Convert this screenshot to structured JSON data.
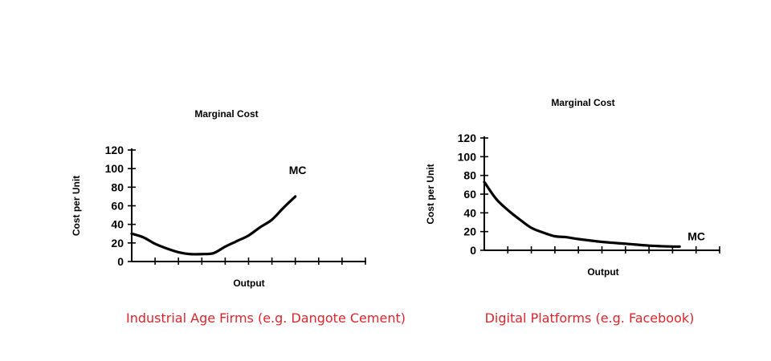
{
  "caption_color": "#d9262c",
  "chart_data": [
    {
      "type": "line",
      "title": "Marginal Cost",
      "xlabel": "Output",
      "ylabel": "Cost per Unit",
      "ylim": [
        0,
        120
      ],
      "yticks": [
        0,
        20,
        40,
        60,
        80,
        100,
        120
      ],
      "x_tick_count": 10,
      "xlim": [
        0,
        10
      ],
      "series": [
        {
          "name": "MC",
          "x": [
            0,
            0.5,
            1,
            1.5,
            2,
            2.5,
            3,
            3.5,
            4,
            4.5,
            5,
            5.5,
            6,
            6.5,
            7
          ],
          "values": [
            30,
            26,
            19,
            14,
            10,
            8,
            8,
            9,
            16,
            22,
            28,
            37,
            45,
            58,
            70
          ]
        }
      ],
      "caption": "Industrial Age Firms (e.g. Dangote Cement)"
    },
    {
      "type": "line",
      "title": "Marginal Cost",
      "xlabel": "Output",
      "ylabel": "Cost per Unit",
      "ylim": [
        0,
        120
      ],
      "yticks": [
        0,
        20,
        40,
        60,
        80,
        100,
        120
      ],
      "x_tick_count": 10,
      "xlim": [
        0,
        10
      ],
      "series": [
        {
          "name": "MC",
          "x": [
            0,
            0.5,
            1,
            1.5,
            2,
            2.5,
            3,
            3.5,
            4,
            5,
            6,
            7,
            8,
            8.3
          ],
          "values": [
            73,
            55,
            43,
            33,
            24,
            19,
            15,
            14,
            12,
            9,
            7,
            5,
            4,
            4
          ]
        }
      ],
      "caption": "Digital Platforms (e.g. Facebook)"
    }
  ]
}
